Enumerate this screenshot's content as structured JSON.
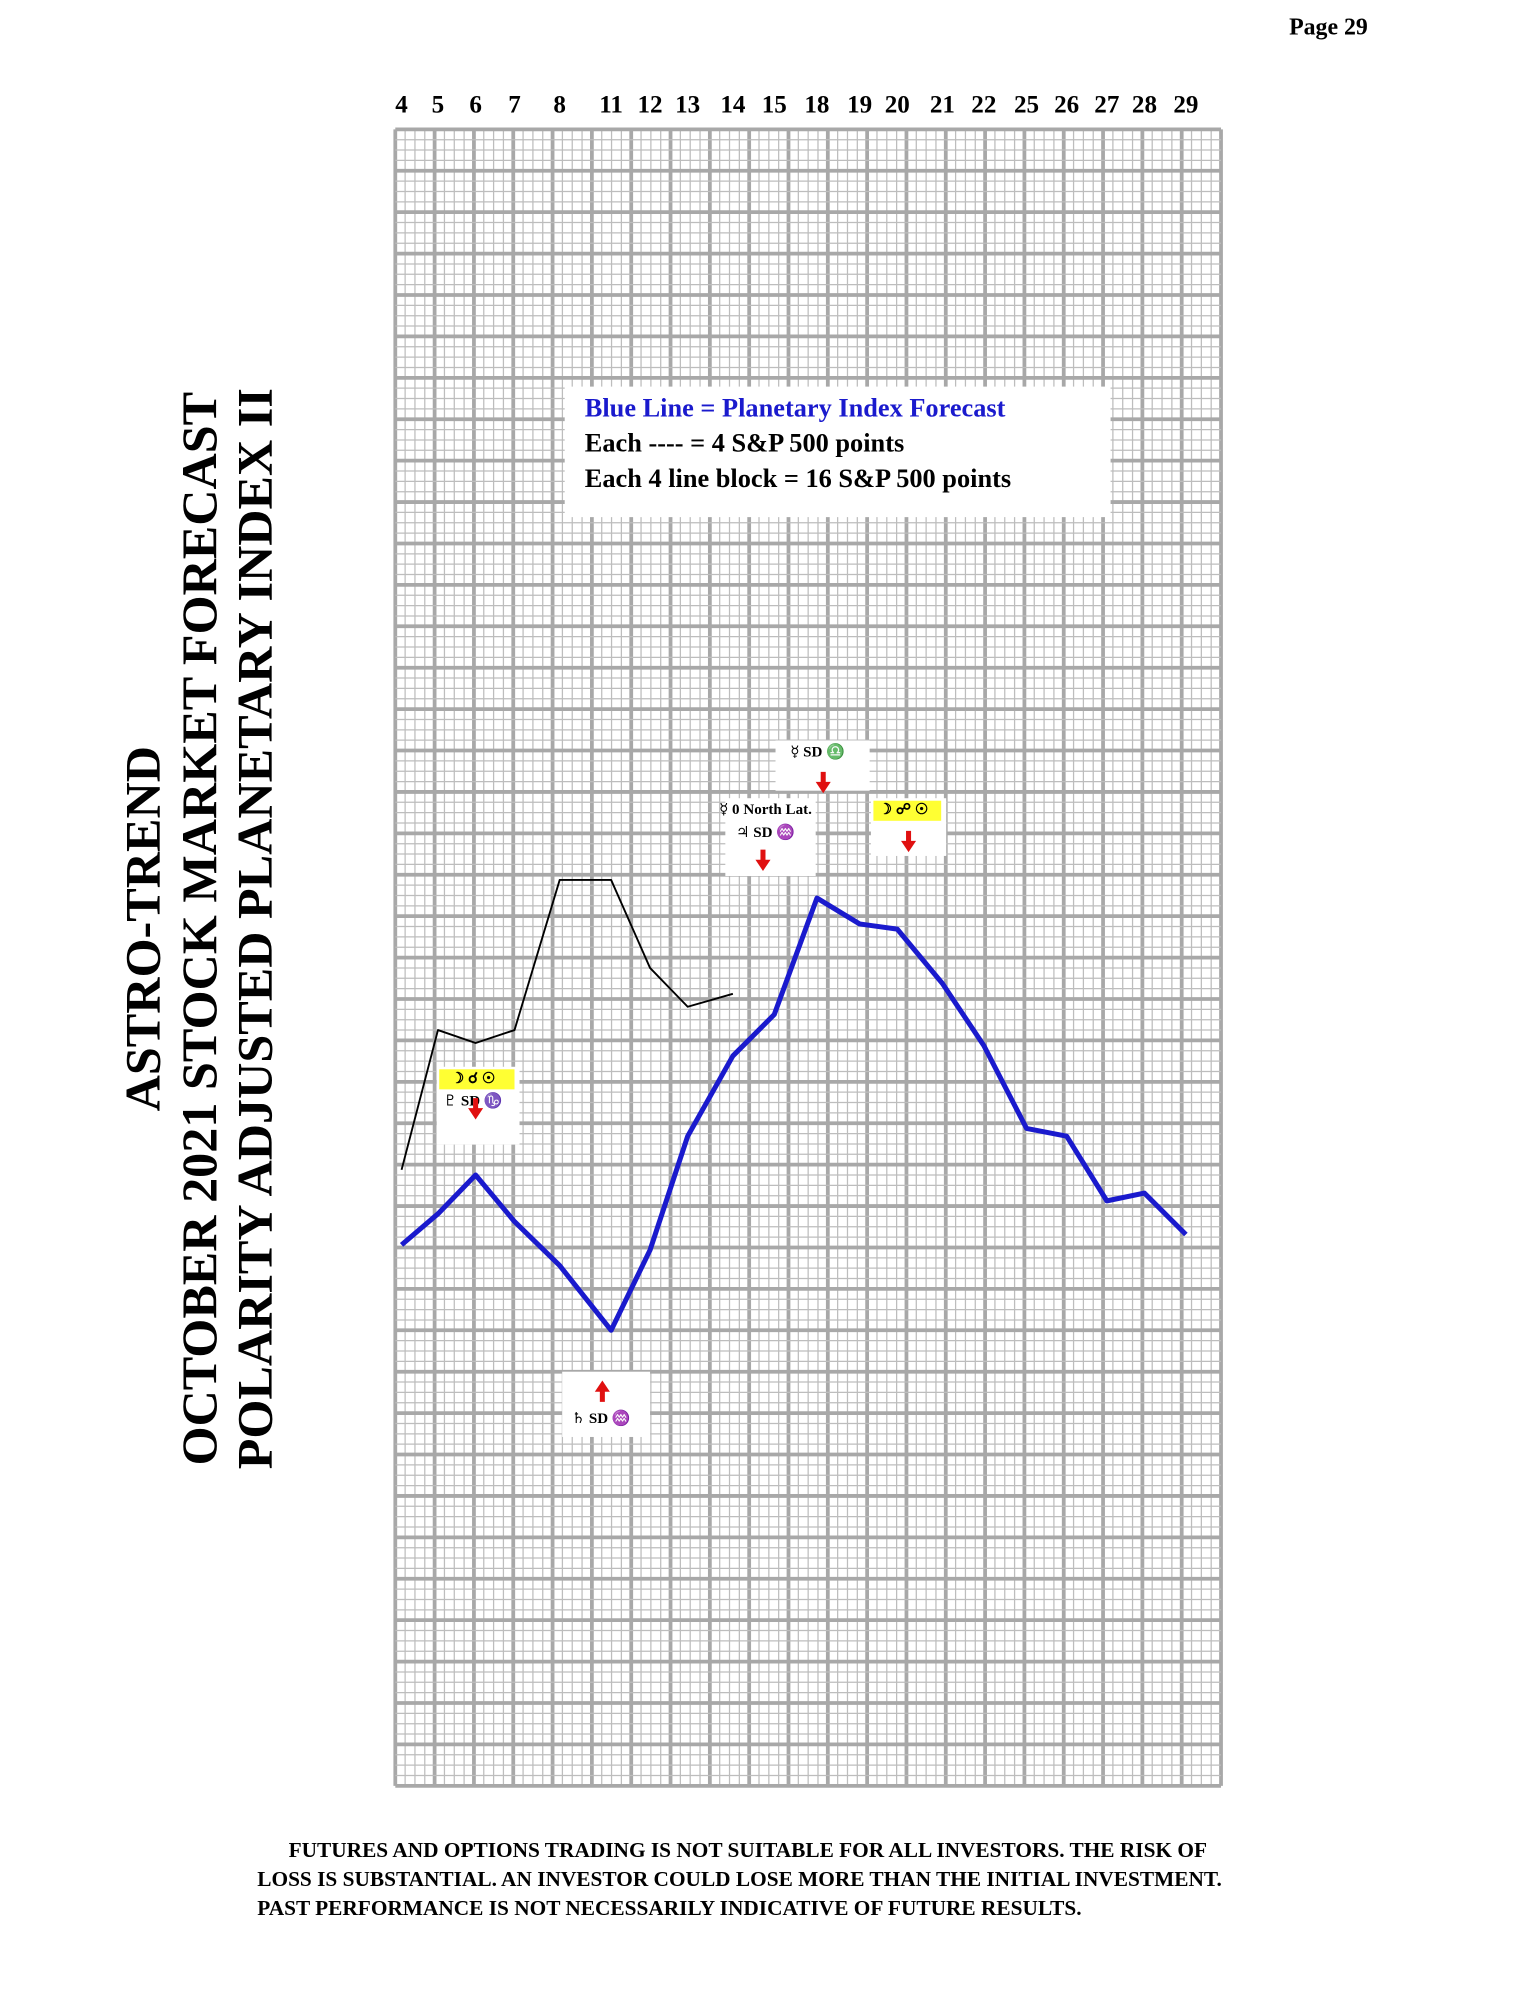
{
  "page": {
    "page_label": "Page  29",
    "title_lines": [
      "ASTRO-TREND",
      "OCTOBER 2021 STOCK MARKET FORECAST",
      "POLARITY ADJUSTED PLANETARY INDEX II"
    ],
    "disclaimer": [
      "FUTURES AND OPTIONS TRADING IS NOT SUITABLE FOR ALL INVESTORS.  THE RISK OF",
      "LOSS IS SUBSTANTIAL.  AN INVESTOR COULD LOSE MORE THAN THE INITIAL INVESTMENT.",
      "PAST PERFORMANCE IS NOT NECESSARILY INDICATIVE OF FUTURE RESULTS."
    ]
  },
  "chart_data": {
    "type": "line",
    "categories": [
      "4",
      "5",
      "6",
      "7",
      "8",
      "11",
      "12",
      "13",
      "14",
      "15",
      "18",
      "19",
      "20",
      "21",
      "22",
      "25",
      "26",
      "27",
      "28",
      "29"
    ],
    "series": [
      {
        "name": "Blue Line = Planetary Index Forecast",
        "color": "#1a1acd",
        "values": [
          1,
          13,
          28,
          10,
          -7,
          -32,
          -1,
          43,
          74,
          90,
          135,
          125,
          123,
          102,
          78,
          46,
          43,
          18,
          21,
          5
        ]
      },
      {
        "color": "#000000",
        "values": [
          30,
          84,
          79,
          84,
          142,
          142,
          108,
          93,
          98,
          null,
          null,
          null,
          null,
          null,
          null,
          null,
          null,
          null,
          null,
          null
        ]
      }
    ],
    "ylim": [
      -208,
      432
    ],
    "legend_lines": [
      "Each ---- =   4 S&P 500 points",
      "Each 4 line block =  16  S&P 500 points"
    ],
    "annotations": [
      {
        "lines": [
          "☽ ☌ ☉",
          "♇ SD ♑"
        ]
      },
      {
        "lines": [
          "☿ SD ♎"
        ]
      },
      {
        "lines": [
          "☿ 0 North Lat.",
          "♃ SD ♒"
        ]
      },
      {
        "lines": [
          "☽ ☍ ☉"
        ]
      },
      {
        "lines": [
          "♄ SD ♒"
        ]
      }
    ]
  }
}
